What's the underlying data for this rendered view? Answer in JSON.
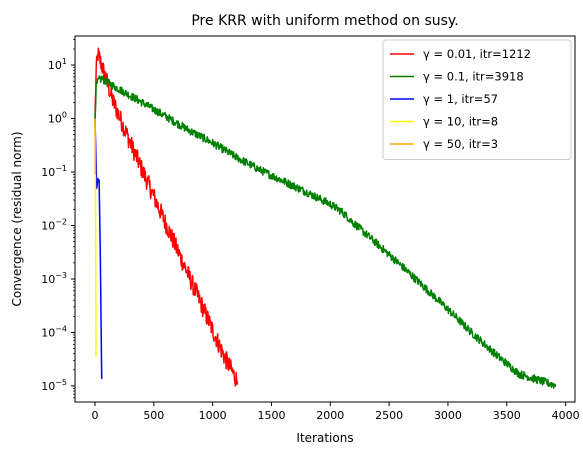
{
  "chart_data": {
    "type": "line",
    "title": "Pre KRR with uniform method on susy.",
    "xlabel": "Iterations",
    "ylabel": "Convergence (residual norm)",
    "xlim": [
      -170,
      4080
    ],
    "ylim": [
      5e-06,
      35
    ],
    "yscale": "log",
    "grid": false,
    "legend_position": "top-right",
    "xticks": [
      0,
      500,
      1000,
      1500,
      2000,
      2500,
      3000,
      3500,
      4000
    ],
    "yticks": [
      1e-05,
      0.0001,
      0.001,
      0.01,
      0.1,
      1,
      10
    ],
    "ytick_labels": [
      {
        "base": "10",
        "exp": "−5"
      },
      {
        "base": "10",
        "exp": "−4"
      },
      {
        "base": "10",
        "exp": "−3"
      },
      {
        "base": "10",
        "exp": "−2"
      },
      {
        "base": "10",
        "exp": "−1"
      },
      {
        "base": "10",
        "exp": "0"
      },
      {
        "base": "10",
        "exp": "1"
      }
    ],
    "series": [
      {
        "name": "γ = 0.01, itr=1212",
        "color": "#ff0000",
        "noise": 0.35,
        "x": [
          0,
          10,
          25,
          40,
          70,
          100,
          150,
          200,
          300,
          400,
          500,
          600,
          700,
          800,
          900,
          1000,
          1100,
          1212
        ],
        "y": [
          1.0,
          8.0,
          16.0,
          13.0,
          8.0,
          5.0,
          2.2,
          1.2,
          0.35,
          0.11,
          0.035,
          0.011,
          0.0035,
          0.0011,
          0.00035,
          0.00011,
          3.5e-05,
          1.2e-05
        ]
      },
      {
        "name": "γ = 0.1, itr=3918",
        "color": "#008000",
        "noise": 0.15,
        "x": [
          0,
          10,
          30,
          60,
          100,
          200,
          400,
          600,
          800,
          1000,
          1200,
          1400,
          1600,
          1800,
          2000,
          2100,
          2200,
          2400,
          2600,
          2800,
          3000,
          3200,
          3400,
          3600,
          3800,
          3918
        ],
        "y": [
          1.0,
          4.0,
          5.2,
          5.6,
          4.8,
          3.6,
          2.0,
          1.1,
          0.6,
          0.35,
          0.19,
          0.11,
          0.068,
          0.042,
          0.025,
          0.018,
          0.011,
          0.0045,
          0.0018,
          0.0007,
          0.00027,
          0.0001,
          4e-05,
          1.7e-05,
          1.22e-05,
          1.02e-05
        ]
      },
      {
        "name": "γ = 1, itr=57",
        "color": "#0000ff",
        "noise": 0,
        "x": [
          0,
          15,
          25,
          35,
          45,
          57
        ],
        "y": [
          1.0,
          0.05,
          0.075,
          0.07,
          0.003,
          1.35e-05
        ]
      },
      {
        "name": "γ = 10, itr=8",
        "color": "#ffff00",
        "noise": 0,
        "x": [
          0,
          2,
          4,
          6,
          8
        ],
        "y": [
          1.0,
          0.4,
          0.05,
          0.003,
          3.5e-05
        ]
      },
      {
        "name": "γ = 50, itr=3",
        "color": "#ffa500",
        "noise": 0,
        "x": [
          0,
          1,
          2,
          3
        ],
        "y": [
          1.0,
          0.6,
          0.25,
          0.09
        ]
      }
    ]
  }
}
